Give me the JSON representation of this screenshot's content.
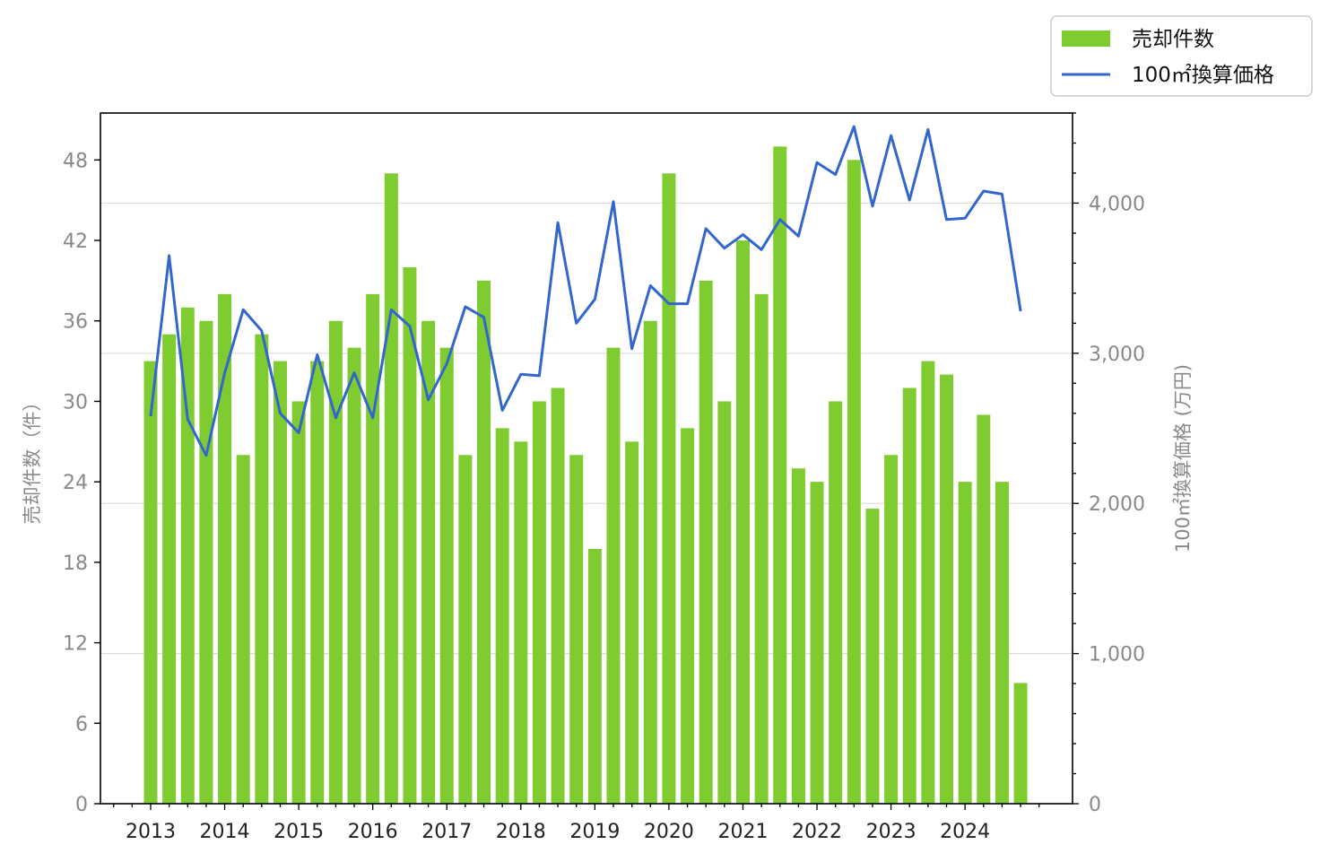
{
  "chart_data": {
    "type": "bar+line",
    "x_tick_labels": [
      "2013",
      "2014",
      "2015",
      "2016",
      "2017",
      "2018",
      "2019",
      "2020",
      "2021",
      "2022",
      "2023",
      "2024"
    ],
    "y_left": {
      "label": "売却件数（件）",
      "range": [
        0,
        51.5
      ],
      "ticks": [
        0,
        6,
        12,
        18,
        24,
        30,
        36,
        42,
        48
      ],
      "tick_labels": [
        "0",
        "6",
        "12",
        "18",
        "24",
        "30",
        "36",
        "42",
        "48"
      ]
    },
    "y_right": {
      "label": "100㎡換算価格 (万円)",
      "range": [
        0,
        4600
      ],
      "ticks": [
        0,
        1000,
        2000,
        3000,
        4000
      ],
      "tick_labels": [
        "0",
        "1,000",
        "2,000",
        "3,000",
        "4,000"
      ]
    },
    "grid": "horizontal (right axis)",
    "legend_position": "top-right, outside",
    "series": [
      {
        "name": "売却件数",
        "type": "bar",
        "axis": "left",
        "color": "#7fcc30",
        "values": [
          33,
          35,
          37,
          36,
          38,
          26,
          35,
          33,
          30,
          33,
          36,
          34,
          38,
          47,
          40,
          36,
          34,
          26,
          39,
          28,
          27,
          30,
          31,
          26,
          19,
          34,
          27,
          36,
          47,
          28,
          39,
          30,
          42,
          38,
          49,
          25,
          24,
          30,
          48,
          22,
          26,
          31,
          33,
          32,
          24,
          29,
          24,
          9
        ]
      },
      {
        "name": "100㎡換算価格",
        "type": "line",
        "axis": "right",
        "color": "#3366cc",
        "values": [
          2580,
          3650,
          2560,
          2320,
          2870,
          3290,
          3150,
          2600,
          2470,
          2990,
          2570,
          2870,
          2570,
          3290,
          3180,
          2690,
          2930,
          3310,
          3240,
          2620,
          2860,
          2850,
          3870,
          3200,
          3360,
          4010,
          3030,
          3450,
          3330,
          3330,
          3830,
          3700,
          3790,
          3690,
          3890,
          3780,
          4270,
          4190,
          4510,
          3980,
          4450,
          4020,
          4490,
          3890,
          3900,
          4080,
          4060,
          3280
        ]
      }
    ]
  }
}
